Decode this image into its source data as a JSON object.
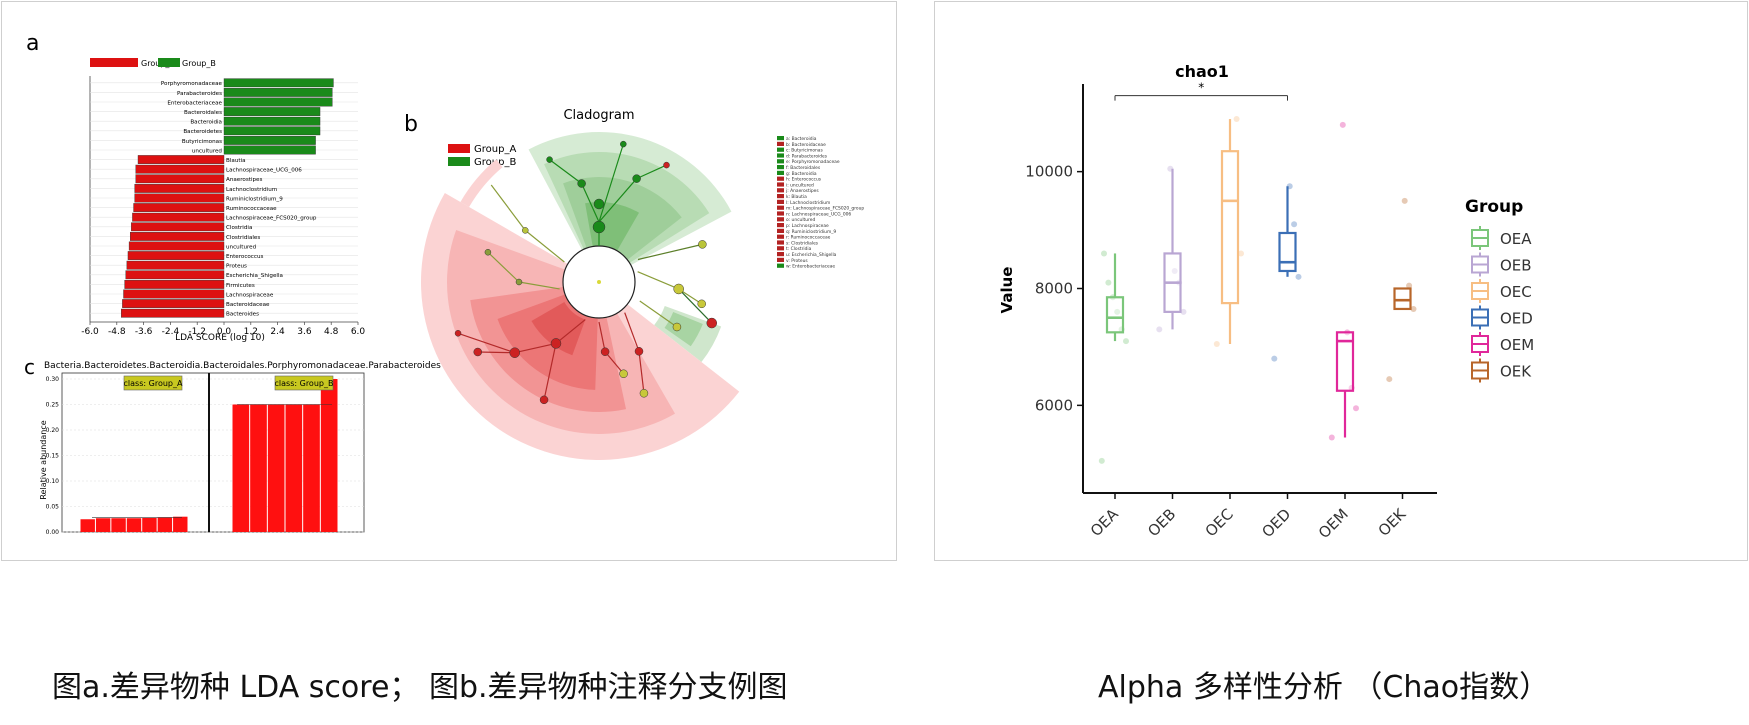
{
  "captions": {
    "left": "图a.差异物种 LDA score； 图b.差异物种注释分支例图",
    "right": "Alpha 多样性分析 （Chao指数）"
  },
  "panel_a": {
    "label": "a",
    "legend": [
      {
        "name": "Group_A",
        "color": "#dd1111"
      },
      {
        "name": "Group_B",
        "color": "#1a8a1a"
      }
    ]
  },
  "panel_b": {
    "label": "b"
  },
  "panel_c": {
    "label": "c"
  },
  "chart_data": [
    {
      "type": "bar",
      "orientation": "horizontal",
      "xlabel": "LDA SCORE (log 10)",
      "xlim": [
        -6.0,
        6.0
      ],
      "xticks": [
        "-6.0",
        "-4.8",
        "-3.6",
        "-2.4",
        "-1.2",
        "0.0",
        "1.2",
        "2.4",
        "3.6",
        "4.8",
        "6.0"
      ],
      "categories": [
        "Porphyromonadaceae",
        "Parabacteroides",
        "Enterobacteriaceae",
        "Bacteroidales",
        "Bacteroidia",
        "Bacteroidetes",
        "Butyricimonas",
        "uncultured",
        "Blautia",
        "Lachnospiraceae_UCG_006",
        "Anaerostipes",
        "Lachnoclostridium",
        "Ruminiclostridium_9",
        "Ruminococcaceae",
        "Lachnospiraceae_FCS020_group",
        "Clostridia",
        "Clostridiales",
        "uncultured",
        "Enterococcus",
        "Proteus",
        "Escherichia_Shigella",
        "Firmicutes",
        "Lachnospiraceae",
        "Bacteroidaceae",
        "Bacteroides"
      ],
      "values": [
        4.9,
        4.85,
        4.85,
        4.3,
        4.3,
        4.3,
        4.1,
        4.1,
        -3.85,
        -3.95,
        -3.95,
        -4.0,
        -4.0,
        -4.05,
        -4.1,
        -4.15,
        -4.2,
        -4.25,
        -4.3,
        -4.35,
        -4.4,
        -4.45,
        -4.5,
        -4.55,
        -4.6
      ],
      "groups": [
        "Group_B",
        "Group_B",
        "Group_B",
        "Group_B",
        "Group_B",
        "Group_B",
        "Group_B",
        "Group_B",
        "Group_A",
        "Group_A",
        "Group_A",
        "Group_A",
        "Group_A",
        "Group_A",
        "Group_A",
        "Group_A",
        "Group_A",
        "Group_A",
        "Group_A",
        "Group_A",
        "Group_A",
        "Group_A",
        "Group_A",
        "Group_A",
        "Group_A"
      ]
    },
    {
      "type": "other",
      "title": "Cladogram",
      "legend": [
        {
          "name": "Group_A",
          "color": "#dd1111"
        },
        {
          "name": "Group_B",
          "color": "#1a8a1a"
        }
      ],
      "key": [
        {
          "label": "a: Bacteroidia",
          "group": "Group_B"
        },
        {
          "label": "b: Bacteroidaceae",
          "group": "Group_A"
        },
        {
          "label": "c: Butyricimonas",
          "group": "Group_B"
        },
        {
          "label": "d: Parabacteroides",
          "group": "Group_B"
        },
        {
          "label": "e: Porphyromonadaceae",
          "group": "Group_B"
        },
        {
          "label": "f: Bacteroidales",
          "group": "Group_B"
        },
        {
          "label": "g: Bacteroidia",
          "group": "Group_B"
        },
        {
          "label": "h: Enterococcus",
          "group": "Group_A"
        },
        {
          "label": "i: uncultured",
          "group": "Group_A"
        },
        {
          "label": "j: Anaerostipes",
          "group": "Group_A"
        },
        {
          "label": "k: Blautia",
          "group": "Group_A"
        },
        {
          "label": "l: Lachnoclostridium",
          "group": "Group_A"
        },
        {
          "label": "m: Lachnospiraceae_FCS020_group",
          "group": "Group_A"
        },
        {
          "label": "n: Lachnospiraceae_UCG_006",
          "group": "Group_A"
        },
        {
          "label": "o: uncultured",
          "group": "Group_A"
        },
        {
          "label": "p: Lachnospiraceae",
          "group": "Group_A"
        },
        {
          "label": "q: Ruminiclostridium_9",
          "group": "Group_A"
        },
        {
          "label": "r: Ruminococcaceae",
          "group": "Group_A"
        },
        {
          "label": "s: Clostridiales",
          "group": "Group_A"
        },
        {
          "label": "t: Clostridia",
          "group": "Group_A"
        },
        {
          "label": "u: Escherichia_Shigella",
          "group": "Group_A"
        },
        {
          "label": "v: Proteus",
          "group": "Group_A"
        },
        {
          "label": "w: Enterobacteriaceae",
          "group": "Group_B"
        }
      ]
    },
    {
      "type": "bar",
      "title": "Bacteria.Bacteroidetes.Bacteroidia.Bacteroidales.Porphyromonadaceae.Parabacteroides",
      "ylabel": "Relative abundance",
      "ylim": [
        0,
        0.3
      ],
      "yticks": [
        "0.00",
        "0.05",
        "0.10",
        "0.15",
        "0.20",
        "0.25",
        "0.30"
      ],
      "groups": [
        {
          "name": "class: Group_A",
          "values": [
            0.025,
            0.027,
            0.027,
            0.027,
            0.028,
            0.029,
            0.03
          ]
        },
        {
          "name": "class: Group_B",
          "values": [
            0.25,
            0.25,
            0.25,
            0.25,
            0.25,
            0.3
          ]
        }
      ]
    },
    {
      "type": "box",
      "title": "chao1",
      "xlabel": "",
      "ylabel": "Value",
      "ylim": [
        4500,
        11500
      ],
      "yticks": [
        6000,
        8000,
        10000
      ],
      "legend_title": "Group",
      "legend_position": "right",
      "significance": {
        "from": "OEA",
        "to": "OED",
        "label": "*"
      },
      "series": [
        {
          "name": "OEA",
          "color": "#7bc67a",
          "min": 7100,
          "q1": 7250,
          "median": 7500,
          "q3": 7850,
          "max": 8600,
          "points": [
            5050,
            7100,
            7300,
            7600,
            7850,
            8100,
            8600
          ]
        },
        {
          "name": "OEB",
          "color": "#b9a6d3",
          "min": 7300,
          "q1": 7600,
          "median": 8100,
          "q3": 8600,
          "max": 10050,
          "points": [
            7300,
            7600,
            8100,
            8300,
            10050
          ]
        },
        {
          "name": "OEC",
          "color": "#f7be83",
          "min": 7050,
          "q1": 7750,
          "median": 9500,
          "q3": 10350,
          "max": 10900,
          "points": [
            7050,
            8600,
            10900
          ]
        },
        {
          "name": "OED",
          "color": "#3b6fb6",
          "min": 8200,
          "q1": 8300,
          "median": 8450,
          "q3": 8950,
          "max": 9750,
          "points": [
            6800,
            8200,
            9100,
            9750
          ]
        },
        {
          "name": "OEM",
          "color": "#e0279a",
          "min": 5450,
          "q1": 6250,
          "median": 7100,
          "q3": 7250,
          "max": 7250,
          "points": [
            5450,
            5950,
            6300,
            7250,
            10800
          ]
        },
        {
          "name": "OEK",
          "color": "#b8662a",
          "min": 7650,
          "q1": 7650,
          "median": 7800,
          "q3": 8000,
          "max": 8000,
          "points": [
            6450,
            7650,
            8050,
            9500
          ]
        }
      ]
    }
  ]
}
